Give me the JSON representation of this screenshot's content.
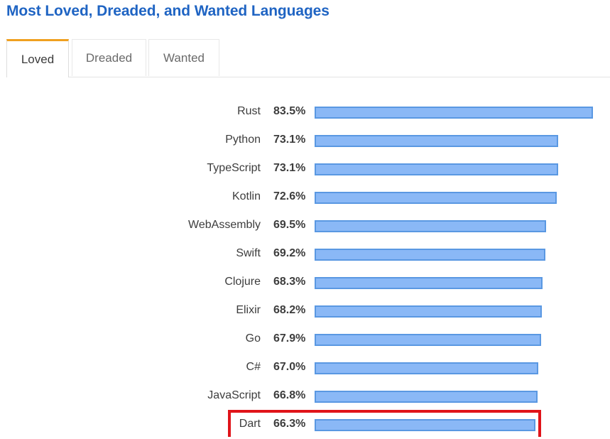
{
  "title": "Most Loved, Dreaded, and Wanted Languages",
  "tabs": [
    {
      "label": "Loved",
      "active": true
    },
    {
      "label": "Dreaded",
      "active": false
    },
    {
      "label": "Wanted",
      "active": false
    }
  ],
  "colors": {
    "title": "#1f64c3",
    "active_tab_accent": "#f0a020",
    "bar_fill": "#8ab8f6",
    "bar_border": "#5a98e2",
    "highlight": "#e0141a"
  },
  "highlighted_item": "Dart",
  "rows": [
    {
      "lang": "Rust",
      "value": "83.5%"
    },
    {
      "lang": "Python",
      "value": "73.1%"
    },
    {
      "lang": "TypeScript",
      "value": "73.1%"
    },
    {
      "lang": "Kotlin",
      "value": "72.6%"
    },
    {
      "lang": "WebAssembly",
      "value": "69.5%"
    },
    {
      "lang": "Swift",
      "value": "69.2%"
    },
    {
      "lang": "Clojure",
      "value": "68.3%"
    },
    {
      "lang": "Elixir",
      "value": "68.2%"
    },
    {
      "lang": "Go",
      "value": "67.9%"
    },
    {
      "lang": "C#",
      "value": "67.0%"
    },
    {
      "lang": "JavaScript",
      "value": "66.8%"
    },
    {
      "lang": "Dart",
      "value": "66.3%"
    }
  ],
  "chart_data": {
    "type": "bar",
    "orientation": "horizontal",
    "title": "Most Loved, Dreaded, and Wanted Languages",
    "subtitle": "Loved",
    "categories": [
      "Rust",
      "Python",
      "TypeScript",
      "Kotlin",
      "WebAssembly",
      "Swift",
      "Clojure",
      "Elixir",
      "Go",
      "C#",
      "JavaScript",
      "Dart"
    ],
    "values": [
      83.5,
      73.1,
      73.1,
      72.6,
      69.5,
      69.2,
      68.3,
      68.2,
      67.9,
      67.0,
      66.8,
      66.3
    ],
    "unit": "%",
    "xlabel": "",
    "ylabel": "",
    "grid": false,
    "legend": null,
    "annotations": [
      "Dart row highlighted with red box"
    ]
  }
}
